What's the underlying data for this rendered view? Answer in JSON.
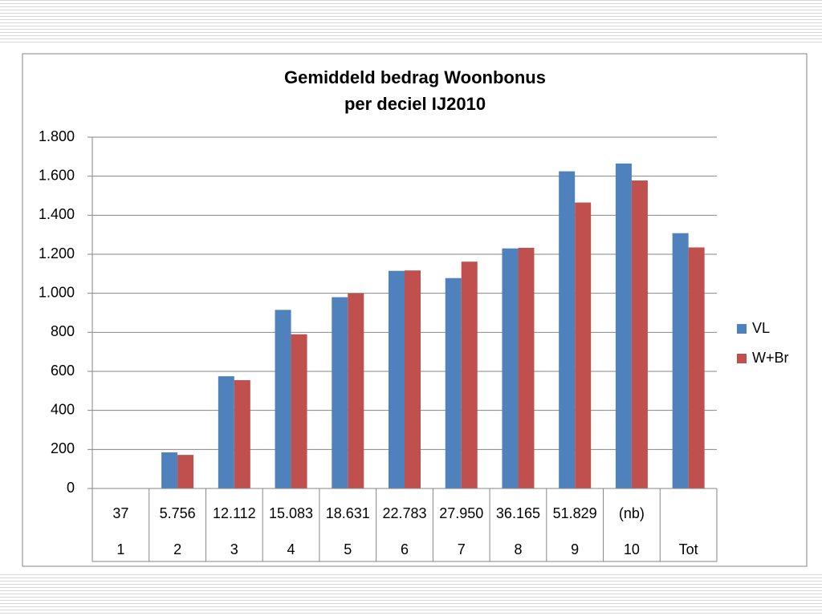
{
  "chart_data": {
    "type": "bar",
    "title": [
      "Gemiddeld bedrag Woonbonus",
      "per deciel IJ2010"
    ],
    "categories": [
      "1",
      "2",
      "3",
      "4",
      "5",
      "6",
      "7",
      "8",
      "9",
      "10",
      "Tot"
    ],
    "category_labels_top": [
      "37",
      "5.756",
      "12.112",
      "15.083",
      "18.631",
      "22.783",
      "27.950",
      "36.165",
      "51.829",
      "(nb)",
      null
    ],
    "series": [
      {
        "name": "VL",
        "color": "#4f81bd",
        "values": [
          null,
          185,
          575,
          915,
          980,
          1115,
          1078,
          1230,
          1625,
          1665,
          1308
        ]
      },
      {
        "name": "W+Br",
        "color": "#c0504d",
        "values": [
          null,
          172,
          555,
          790,
          1000,
          1117,
          1162,
          1233,
          1465,
          1578,
          1235
        ]
      }
    ],
    "ylim": [
      0,
      1800
    ],
    "yticks": [
      0,
      200,
      400,
      600,
      800,
      {
        "value": 1000,
        "label": "1.000"
      },
      {
        "value": 1200,
        "label": "1.200"
      },
      {
        "value": 1400,
        "label": "1.400"
      },
      {
        "value": 1600,
        "label": "1.600"
      },
      {
        "value": 1800,
        "label": "1.800"
      }
    ],
    "grid": true,
    "legend": "right"
  }
}
